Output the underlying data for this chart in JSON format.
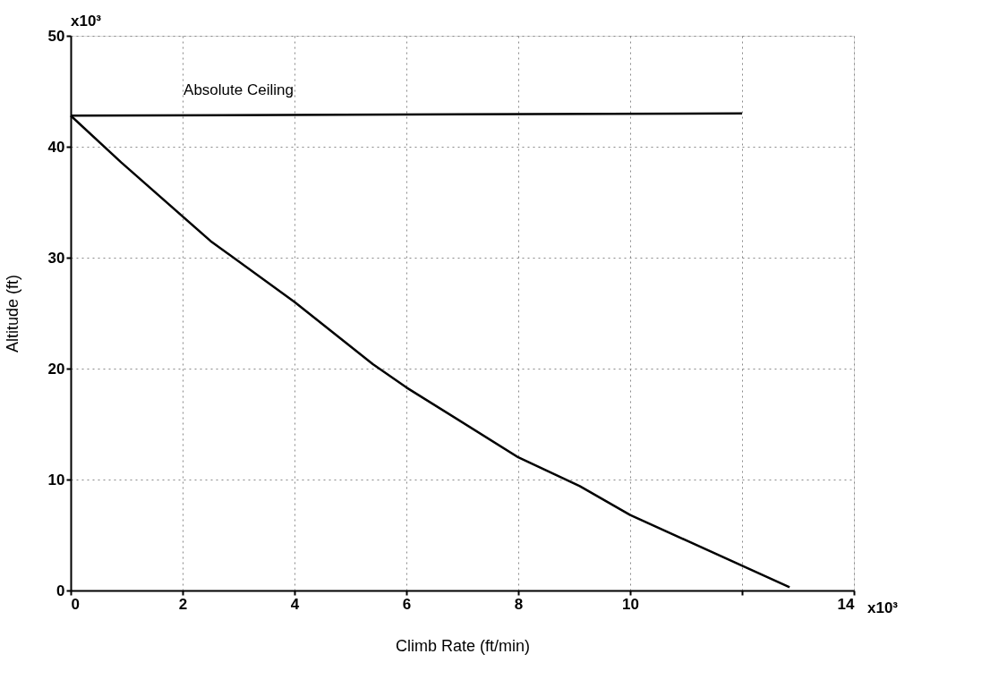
{
  "chart_data": {
    "type": "line",
    "xlabel": "Climb Rate (ft/min)",
    "ylabel": "Altitude (ft)",
    "series": [
      {
        "x": [
          0,
          0.9,
          2.5,
          4.0,
          5.4,
          6.0,
          8.0,
          9.1,
          10.0,
          12.85
        ],
        "values": [
          42.8,
          38.6,
          31.5,
          26.0,
          20.4,
          18.3,
          12.0,
          9.4,
          6.8,
          0.3
        ],
        "color": "#000000"
      },
      {
        "name": "Absolute Ceiling",
        "type": "line",
        "x": [
          0,
          12
        ],
        "values": [
          42.8,
          43.0
        ],
        "color": "#000000"
      }
    ],
    "xlim": [
      0,
      14
    ],
    "ylim": [
      0,
      50
    ],
    "xticks": [
      0,
      2,
      4,
      6,
      8,
      10,
      {
        "value": 12,
        "label": null
      },
      14
    ],
    "yticks": [
      0,
      10,
      20,
      30,
      40,
      50
    ],
    "annotations": [
      "x10³",
      "x10³"
    ],
    "grid": true,
    "marker": "none",
    "line_style": "solid"
  }
}
